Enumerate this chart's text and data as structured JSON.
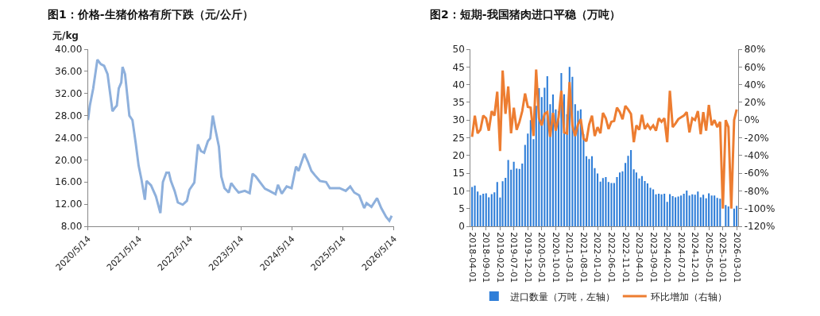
{
  "chart_data": [
    {
      "type": "line",
      "title": "图1：价格-生猪价格有所下跌（元/公斤）",
      "ylabel": "元/kg",
      "legend": false,
      "marker": "none",
      "line_style": "solid",
      "xlim": [
        "2020-05-14",
        "2026-05-14"
      ],
      "xticks": [
        {
          "value": "2020-05-14",
          "label": "2020/5/14"
        },
        {
          "value": "2021-05-14",
          "label": "2021/5/14"
        },
        {
          "value": "2022-05-14",
          "label": "2022/5/14"
        },
        {
          "value": "2023-05-14",
          "label": "2023/5/14"
        },
        {
          "value": "2024-05-14",
          "label": "2024/5/14"
        },
        {
          "value": "2025-05-14",
          "label": "2025/5/14"
        },
        {
          "value": "2026-05-14",
          "label": "2026/5/14"
        }
      ],
      "ylim": [
        8,
        40
      ],
      "yticks": [
        {
          "value": 8,
          "label": "8.00"
        },
        {
          "value": 12,
          "label": "12.00"
        },
        {
          "value": 16,
          "label": "16.00"
        },
        {
          "value": 20,
          "label": "20.00"
        },
        {
          "value": 24,
          "label": "24.00"
        },
        {
          "value": 28,
          "label": "28.00"
        },
        {
          "value": 32,
          "label": "32.00"
        },
        {
          "value": 36,
          "label": "36.00"
        },
        {
          "value": 40,
          "label": "40.00"
        }
      ],
      "series": [
        {
          "color": "#8eb0dc",
          "x": [
            "2020-05-14",
            "2020-05-27",
            "2020-06-20",
            "2020-07-20",
            "2020-08-14",
            "2020-09-06",
            "2020-10-01",
            "2020-11-05",
            "2020-11-25",
            "2020-12-06",
            "2020-12-20",
            "2021-01-07",
            "2021-01-16",
            "2021-02-03",
            "2021-02-20",
            "2021-03-06",
            "2021-03-28",
            "2021-04-20",
            "2021-05-11",
            "2021-06-01",
            "2021-06-25",
            "2021-07-07",
            "2021-08-08",
            "2021-09-12",
            "2021-10-14",
            "2021-11-01",
            "2021-11-26",
            "2021-12-14",
            "2021-12-28",
            "2022-01-24",
            "2022-02-16",
            "2022-03-23",
            "2022-04-22",
            "2022-05-10",
            "2022-06-14",
            "2022-07-10",
            "2022-07-31",
            "2022-08-23",
            "2022-09-19",
            "2022-10-06",
            "2022-10-24",
            "2022-11-10",
            "2022-12-07",
            "2022-12-24",
            "2023-01-16",
            "2023-02-15",
            "2023-03-05",
            "2023-03-31",
            "2023-04-27",
            "2023-06-10",
            "2023-07-15",
            "2023-08-05",
            "2023-08-28",
            "2023-10-02",
            "2023-11-01",
            "2023-12-03",
            "2024-01-16",
            "2024-02-03",
            "2024-03-01",
            "2024-04-05",
            "2024-05-10",
            "2024-06-11",
            "2024-06-29",
            "2024-08-10",
            "2024-09-02",
            "2024-09-29",
            "2024-10-25",
            "2024-11-29",
            "2025-01-12",
            "2025-02-08",
            "2025-04-19",
            "2025-06-02",
            "2025-07-04",
            "2025-08-02",
            "2025-09-06",
            "2025-10-12",
            "2025-10-29",
            "2025-12-03",
            "2026-01-12",
            "2026-02-11",
            "2026-03-18",
            "2026-04-10",
            "2026-04-27"
          ],
          "values": [
            27.2,
            29.8,
            32.9,
            38.1,
            37.3,
            37.0,
            35.5,
            28.8,
            29.5,
            29.8,
            32.9,
            34.0,
            36.8,
            35.5,
            31.4,
            28.0,
            27.2,
            23.1,
            19.0,
            16.4,
            12.8,
            16.2,
            15.4,
            13.4,
            10.4,
            16.0,
            17.7,
            17.7,
            16.2,
            14.4,
            12.3,
            11.9,
            12.6,
            14.6,
            15.9,
            22.8,
            21.6,
            21.3,
            23.4,
            23.9,
            28.0,
            25.7,
            22.4,
            17.0,
            14.9,
            14.1,
            15.8,
            14.9,
            14.1,
            14.4,
            14.0,
            17.5,
            17.0,
            15.8,
            14.8,
            14.4,
            13.8,
            15.5,
            13.9,
            15.2,
            14.9,
            18.8,
            18.0,
            21.1,
            19.8,
            18.0,
            17.2,
            16.2,
            16.0,
            14.9,
            14.9,
            14.4,
            15.2,
            14.1,
            13.6,
            11.3,
            12.2,
            11.5,
            13.1,
            11.3,
            9.7,
            9.0,
            9.9
          ]
        }
      ]
    },
    {
      "type": "bar",
      "title": "图2：短期-我国猪肉进口平稳（万吨）",
      "legend": "bottom",
      "x": [
        "2018-04-01",
        "2018-05-01",
        "2018-06-01",
        "2018-07-01",
        "2018-08-01",
        "2018-09-01",
        "2018-10-01",
        "2018-11-01",
        "2018-12-01",
        "2019-01-01",
        "2019-02-01",
        "2019-03-01",
        "2019-04-01",
        "2019-05-01",
        "2019-06-01",
        "2019-07-01",
        "2019-08-01",
        "2019-09-01",
        "2019-10-01",
        "2019-11-01",
        "2019-12-01",
        "2020-01-01",
        "2020-02-01",
        "2020-03-01",
        "2020-04-01",
        "2020-05-01",
        "2020-06-01",
        "2020-07-01",
        "2020-08-01",
        "2020-09-01",
        "2020-10-01",
        "2020-11-01",
        "2020-12-01",
        "2021-01-01",
        "2021-02-01",
        "2021-03-01",
        "2021-04-01",
        "2021-05-01",
        "2021-06-01",
        "2021-07-01",
        "2021-08-01",
        "2021-09-01",
        "2021-10-01",
        "2021-11-01",
        "2021-12-01",
        "2022-01-01",
        "2022-02-01",
        "2022-03-01",
        "2022-04-01",
        "2022-05-01",
        "2022-06-01",
        "2022-07-01",
        "2022-08-01",
        "2022-09-01",
        "2022-10-01",
        "2022-11-01",
        "2022-12-01",
        "2023-01-01",
        "2023-02-01",
        "2023-03-01",
        "2023-04-01",
        "2023-05-01",
        "2023-06-01",
        "2023-07-01",
        "2023-08-01",
        "2023-09-01",
        "2023-10-01",
        "2023-11-01",
        "2023-12-01",
        "2024-01-01",
        "2024-02-01",
        "2024-03-01",
        "2024-04-01",
        "2024-05-01",
        "2024-06-01",
        "2024-07-01",
        "2024-08-01",
        "2024-09-01",
        "2024-10-01",
        "2024-11-01",
        "2024-12-01",
        "2025-01-01",
        "2025-02-01",
        "2025-03-01",
        "2025-04-01",
        "2025-05-01",
        "2025-06-01",
        "2025-07-01",
        "2025-08-01",
        "2025-09-01",
        "2025-10-01",
        "2025-11-01",
        "2025-12-01",
        "2026-01-01",
        "2026-02-01",
        "2026-03-01"
      ],
      "xlim": [
        "2018-03-16",
        "2026-03-20"
      ],
      "xticks": [
        "2018-04-01",
        "2018-09-01",
        "2019-02-01",
        "2019-07-01",
        "2019-12-01",
        "2020-05-01",
        "2020-10-01",
        "2021-03-01",
        "2021-08-01",
        "2022-01-01",
        "2022-06-01",
        "2022-11-01",
        "2023-04-01",
        "2023-09-01",
        "2024-02-01",
        "2024-07-01",
        "2024-12-01",
        "2025-05-01",
        "2025-10-01",
        "2026-03-01"
      ],
      "ylim": [
        0,
        50
      ],
      "yticks": [
        0,
        5,
        10,
        15,
        20,
        25,
        30,
        35,
        40,
        45,
        50
      ],
      "y2lim": [
        -120,
        80
      ],
      "y2ticks": [
        {
          "value": -120,
          "label": "-120%"
        },
        {
          "value": -100,
          "label": "-100%"
        },
        {
          "value": -80,
          "label": "-80%"
        },
        {
          "value": -60,
          "label": "-60%"
        },
        {
          "value": -40,
          "label": "-40%"
        },
        {
          "value": -20,
          "label": "-20%"
        },
        {
          "value": 0,
          "label": "0%"
        },
        {
          "value": 20,
          "label": "20%"
        },
        {
          "value": 40,
          "label": "40%"
        },
        {
          "value": 60,
          "label": "60%"
        },
        {
          "value": 80,
          "label": "80%"
        }
      ],
      "series": [
        {
          "name": "进口数量（万吨，左轴）",
          "type": "bar",
          "color": "#2f7ed8",
          "values": [
            11.1,
            11.5,
            9.8,
            8.8,
            9.2,
            9.3,
            8.2,
            9.1,
            9.6,
            12.5,
            8.1,
            12.7,
            13.7,
            18.7,
            16.0,
            18.2,
            16.3,
            16.2,
            17.7,
            23.0,
            26.2,
            30.0,
            24.6,
            34.0,
            39.0,
            36.5,
            39.1,
            42.4,
            34.5,
            37.2,
            33.0,
            32.5,
            43.3,
            37.3,
            31.6,
            45.0,
            42.2,
            34.5,
            32.6,
            33.0,
            26.0,
            19.8,
            19.0,
            19.8,
            16.4,
            14.9,
            12.6,
            13.6,
            13.9,
            12.5,
            12.2,
            12.2,
            13.9,
            15.2,
            15.5,
            17.9,
            19.9,
            21.5,
            16.1,
            15.2,
            13.5,
            14.2,
            12.8,
            12.1,
            10.9,
            10.4,
            9.0,
            9.2,
            9.0,
            9.2,
            6.9,
            9.1,
            8.5,
            8.2,
            8.4,
            8.7,
            9.2,
            10.1,
            8.7,
            9.0,
            8.9,
            9.8,
            8.2,
            8.9,
            7.9,
            9.3,
            8.7,
            8.7,
            8.0,
            7.8,
            null,
            6.0,
            5.6,
            null,
            5.0,
            5.8
          ]
        },
        {
          "name": "环比增加（右轴）",
          "type": "line",
          "axis": "y2",
          "color": "#ed7d31",
          "values": [
            -19,
            5,
            -15,
            -11,
            5,
            2,
            -12,
            10,
            5,
            32,
            -35,
            56,
            7,
            38,
            -15,
            14,
            -11,
            -2,
            10,
            30,
            15,
            14,
            -18,
            57,
            2,
            -6,
            7,
            9,
            -19,
            8,
            -12,
            3,
            33,
            -14,
            -15,
            43,
            -6,
            -18,
            -5,
            1,
            -21,
            -24,
            -5,
            5,
            -18,
            -8,
            -15,
            8,
            2,
            -10,
            -2,
            -1,
            14,
            9,
            1,
            16,
            12,
            7,
            -25,
            -6,
            -11,
            6,
            -10,
            -5,
            -10,
            -6,
            -12,
            2,
            -2,
            2,
            -25,
            33,
            -8,
            -4,
            1,
            3,
            5,
            9,
            -14,
            2,
            0,
            10,
            -16,
            9,
            -12,
            17,
            -6,
            0,
            -8,
            -2,
            -100,
            0,
            -8,
            -100,
            0,
            12
          ]
        }
      ]
    }
  ]
}
